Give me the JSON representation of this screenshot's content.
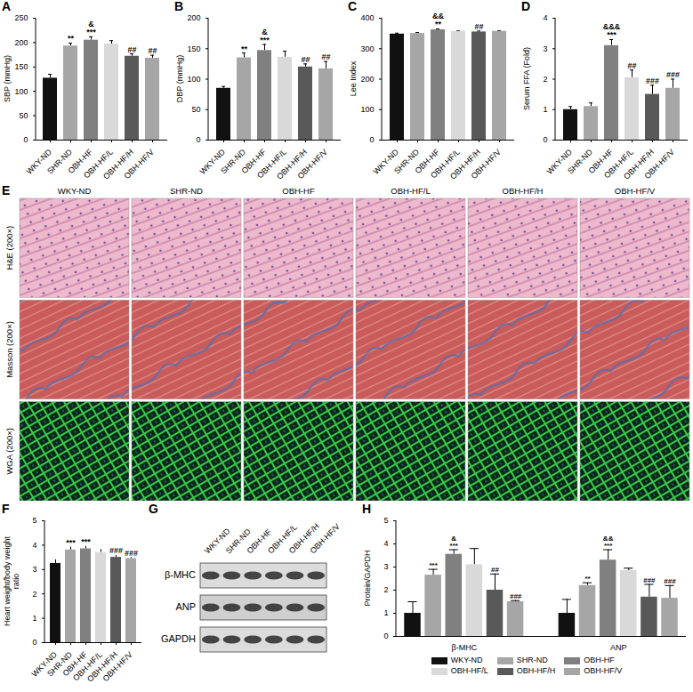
{
  "chart_data": [
    {
      "label": "A",
      "type": "bar",
      "y_label": "SBP (mmHg)",
      "categories": [
        "WKY-ND",
        "SHR-ND",
        "OBH-HF",
        "OBH-HF/L",
        "OBH-HF/H",
        "OBH-HF/V"
      ],
      "values": [
        127,
        193,
        205,
        197,
        172,
        168
      ],
      "errors": [
        8,
        6,
        7,
        7,
        5,
        6
      ],
      "annotations": [
        [],
        [
          "**"
        ],
        [
          "&",
          "***"
        ],
        [],
        [
          "##"
        ],
        [
          "##"
        ]
      ],
      "colors": [
        "#111111",
        "#a6a6a6",
        "#808080",
        "#d9d9d9",
        "#595959",
        "#a6a6a6"
      ],
      "ylim": [
        0,
        250
      ],
      "yticks": [
        0,
        50,
        100,
        150,
        200,
        250
      ]
    },
    {
      "label": "B",
      "type": "bar",
      "y_label": "DBP (mmHg)",
      "categories": [
        "WKY-ND",
        "SHR-ND",
        "OBH-HF",
        "OBH-HF/L",
        "OBH-HF/H",
        "OBH-HF/V"
      ],
      "values": [
        85,
        135,
        147,
        136,
        120,
        117
      ],
      "errors": [
        3,
        8,
        10,
        10,
        5,
        12
      ],
      "annotations": [
        [],
        [
          "**"
        ],
        [
          "&",
          "***"
        ],
        [],
        [
          "##"
        ],
        [
          "##"
        ]
      ],
      "colors": [
        "#111111",
        "#a6a6a6",
        "#808080",
        "#d9d9d9",
        "#595959",
        "#a6a6a6"
      ],
      "ylim": [
        0,
        200
      ],
      "yticks": [
        0,
        50,
        100,
        150,
        200
      ]
    },
    {
      "label": "C",
      "type": "bar",
      "y_label": "Lee Index",
      "categories": [
        "WKY-ND",
        "SHR-ND",
        "OBH-HF",
        "OBH-HF/L",
        "OBH-HF/H",
        "OBH-HF/V"
      ],
      "values": [
        348,
        350,
        362,
        357,
        355,
        357
      ],
      "errors": [
        3,
        3,
        3,
        2,
        3,
        2
      ],
      "annotations": [
        [],
        [],
        [
          "&&",
          "**"
        ],
        [],
        [
          "##"
        ],
        []
      ],
      "colors": [
        "#111111",
        "#a6a6a6",
        "#808080",
        "#d9d9d9",
        "#595959",
        "#a6a6a6"
      ],
      "ylim": [
        0,
        400
      ],
      "yticks": [
        0,
        100,
        200,
        300,
        400
      ]
    },
    {
      "label": "D",
      "type": "bar",
      "y_label": "Serum FFA (Fold)",
      "categories": [
        "WKY-ND",
        "SHR-ND",
        "OBH-HF",
        "OBH-HF/L",
        "OBH-HF/H",
        "OBH-HF/V"
      ],
      "values": [
        1.0,
        1.1,
        3.1,
        2.05,
        1.5,
        1.7
      ],
      "errors": [
        0.1,
        0.12,
        0.2,
        0.25,
        0.3,
        0.3
      ],
      "annotations": [
        [],
        [],
        [
          "&&&",
          "***"
        ],
        [
          "##"
        ],
        [
          "###"
        ],
        [
          "###"
        ]
      ],
      "colors": [
        "#111111",
        "#a6a6a6",
        "#808080",
        "#d9d9d9",
        "#595959",
        "#a6a6a6"
      ],
      "ylim": [
        0,
        4
      ],
      "yticks": [
        0,
        1,
        2,
        3,
        4
      ]
    },
    {
      "label": "F",
      "type": "bar",
      "y_label": "Heart weight/body weight ratio",
      "categories": [
        "WKY-ND",
        "SHR-ND",
        "OBH-HF",
        "OBH-HF/L",
        "OBH-HF/H",
        "OBH-HF/V"
      ],
      "values": [
        3.25,
        3.8,
        3.85,
        3.7,
        3.5,
        3.45
      ],
      "errors": [
        0.15,
        0.12,
        0.1,
        0.12,
        0.08,
        0.05
      ],
      "annotations": [
        [],
        [
          "***"
        ],
        [
          "***"
        ],
        [],
        [
          "###"
        ],
        [
          "###"
        ]
      ],
      "colors": [
        "#111111",
        "#a6a6a6",
        "#808080",
        "#d9d9d9",
        "#595959",
        "#a6a6a6"
      ],
      "ylim": [
        0,
        5
      ],
      "yticks": [
        0,
        1,
        2,
        3,
        4,
        5
      ]
    },
    {
      "label": "H",
      "type": "grouped_bar",
      "y_label": "Protein/GAPDH",
      "categories": [
        "β-MHC",
        "ANP"
      ],
      "legend": "bottom",
      "series": [
        {
          "name": "WKY-ND",
          "color": "#111111",
          "values": [
            1.0,
            1.0
          ],
          "errors": [
            0.5,
            0.6
          ],
          "annotations": [
            [],
            []
          ]
        },
        {
          "name": "SHR-ND",
          "color": "#a6a6a6",
          "values": [
            2.65,
            2.2
          ],
          "errors": [
            0.25,
            0.12
          ],
          "annotations": [
            [
              "***"
            ],
            [
              "**"
            ]
          ]
        },
        {
          "name": "OBH-HF",
          "color": "#808080",
          "values": [
            3.55,
            3.3
          ],
          "errors": [
            0.2,
            0.45
          ],
          "annotations": [
            [
              "&",
              "***"
            ],
            [
              "&&",
              "***"
            ]
          ]
        },
        {
          "name": "OBH-HF/L",
          "color": "#d9d9d9",
          "values": [
            3.1,
            2.85
          ],
          "errors": [
            0.7,
            0.1
          ],
          "annotations": [
            [],
            []
          ]
        },
        {
          "name": "OBH-HF/H",
          "color": "#595959",
          "values": [
            2.0,
            1.7
          ],
          "errors": [
            0.7,
            0.55
          ],
          "annotations": [
            [
              "##"
            ],
            [
              "###"
            ]
          ]
        },
        {
          "name": "OBH-HF/V",
          "color": "#a6a6a6",
          "values": [
            1.5,
            1.65
          ],
          "errors": [
            0.05,
            0.55
          ],
          "annotations": [
            [
              "###"
            ],
            [
              "###"
            ]
          ]
        }
      ],
      "ylim": [
        0,
        5
      ],
      "yticks": [
        0,
        1,
        2,
        3,
        4,
        5
      ]
    }
  ],
  "histology": {
    "label": "E",
    "columns": [
      "WKY-ND",
      "SHR-ND",
      "OBH-HF",
      "OBH-HF/L",
      "OBH-HF/H",
      "OBH-HF/V"
    ],
    "rows": [
      "H&E (200×)",
      "Masson (200×)",
      "WGA (200×)"
    ]
  },
  "western_blot": {
    "label": "G",
    "lanes": [
      "WKY-ND",
      "SHR-ND",
      "OBH-HF",
      "OBH-HF/L",
      "OBH-HF/H",
      "OBH-HF/V"
    ],
    "rows": [
      "β-MHC",
      "ANP",
      "GAPDH"
    ]
  }
}
